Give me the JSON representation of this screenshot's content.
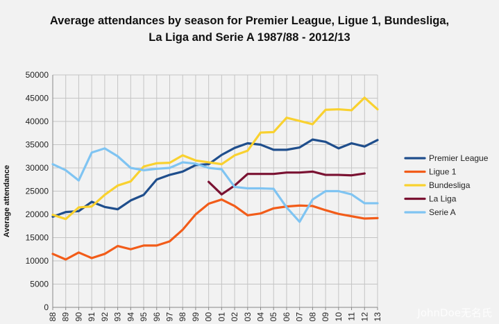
{
  "chart_data": {
    "type": "line",
    "title_line1": "Average attendances by season for Premier League, Ligue 1, Bundesliga,",
    "title_line2": "La Liga and Serie A 1987/88 - 2012/13",
    "xlabel": "",
    "ylabel": "Average attendance",
    "ylim": [
      0,
      50000
    ],
    "yticks": [
      0,
      5000,
      10000,
      15000,
      20000,
      25000,
      30000,
      35000,
      40000,
      45000,
      50000
    ],
    "grid": true,
    "legend_position": "right",
    "x": [
      "88",
      "89",
      "90",
      "91",
      "92",
      "93",
      "94",
      "95",
      "96",
      "97",
      "98",
      "99",
      "00",
      "01",
      "02",
      "03",
      "04",
      "05",
      "06",
      "07",
      "08",
      "09",
      "10",
      "11",
      "12",
      "13"
    ],
    "series": [
      {
        "name": "Premier League",
        "color": "#1f4e8c",
        "values": [
          19500,
          20500,
          20700,
          22700,
          21600,
          21100,
          23000,
          24200,
          27500,
          28500,
          29200,
          30600,
          30800,
          32800,
          34300,
          35300,
          35000,
          33900,
          33900,
          34400,
          36100,
          35600,
          34200,
          35300,
          34600,
          36000
        ]
      },
      {
        "name": "Ligue 1",
        "color": "#f25c19",
        "values": [
          11500,
          10300,
          11800,
          10600,
          11500,
          13200,
          12500,
          13300,
          13300,
          14200,
          16700,
          20000,
          22300,
          23200,
          21800,
          19800,
          20200,
          21300,
          21700,
          21900,
          21800,
          20900,
          20100,
          19600,
          19100,
          19200
        ]
      },
      {
        "name": "Bundesliga",
        "color": "#f9d12f",
        "values": [
          19900,
          19000,
          21500,
          21700,
          24200,
          26200,
          27100,
          30300,
          31000,
          31100,
          32700,
          31600,
          31200,
          30800,
          32700,
          33700,
          37600,
          37700,
          40800,
          40100,
          39400,
          42500,
          42600,
          42400,
          45100,
          42600
        ]
      },
      {
        "name": "La Liga",
        "color": "#7a1232",
        "values": [
          null,
          null,
          null,
          null,
          null,
          null,
          null,
          null,
          null,
          null,
          null,
          null,
          27000,
          24300,
          26200,
          28700,
          28700,
          28700,
          29000,
          29000,
          29200,
          28500,
          28500,
          28400,
          28800,
          null
        ]
      },
      {
        "name": "Serie A",
        "color": "#7fc4f2",
        "values": [
          30800,
          29500,
          27300,
          33300,
          34200,
          32500,
          30000,
          29500,
          29800,
          30000,
          31200,
          30900,
          30000,
          29700,
          25900,
          25600,
          25600,
          25500,
          21500,
          18400,
          23200,
          25000,
          25000,
          24300,
          22400,
          22400
        ]
      }
    ]
  },
  "watermark": "JohnDoe无名氏"
}
